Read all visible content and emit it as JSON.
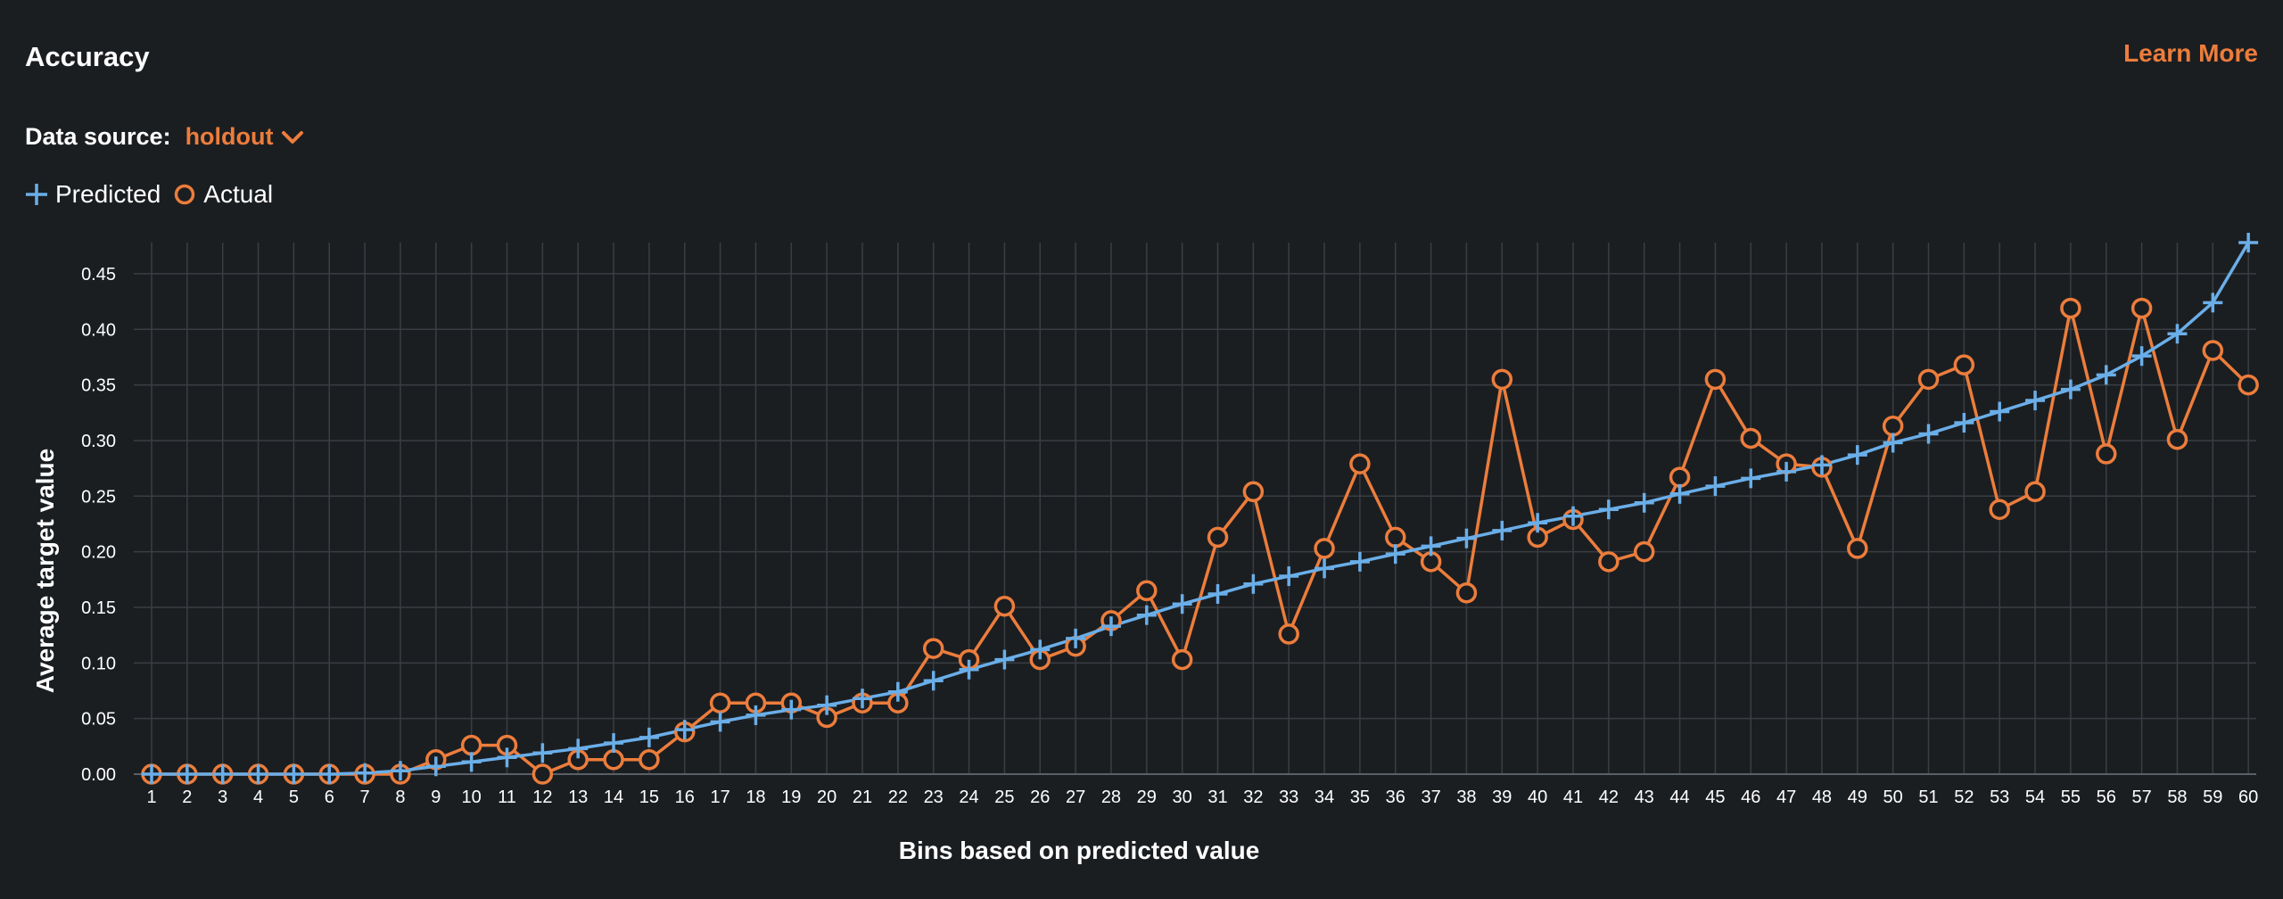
{
  "header": {
    "title": "Accuracy",
    "learn_more": "Learn More"
  },
  "data_source": {
    "label": "Data source:",
    "value": "holdout"
  },
  "colors": {
    "predicted": "#6aaee8",
    "actual": "#ec7d3c",
    "background": "#1b1e21",
    "grid": "#3a3e43"
  },
  "chart_data": {
    "type": "line",
    "xlabel": "Bins based on predicted value",
    "ylabel": "Average target value",
    "ylim": [
      0,
      0.478
    ],
    "yticks": [
      "0.00",
      "0.05",
      "0.10",
      "0.15",
      "0.20",
      "0.25",
      "0.30",
      "0.35",
      "0.40",
      "0.45"
    ],
    "grid": true,
    "legend_position": "top-left",
    "categories": [
      "1",
      "2",
      "3",
      "4",
      "5",
      "6",
      "7",
      "8",
      "9",
      "10",
      "11",
      "12",
      "13",
      "14",
      "15",
      "16",
      "17",
      "18",
      "19",
      "20",
      "21",
      "22",
      "23",
      "24",
      "25",
      "26",
      "27",
      "28",
      "29",
      "30",
      "31",
      "32",
      "33",
      "34",
      "35",
      "36",
      "37",
      "38",
      "39",
      "40",
      "41",
      "42",
      "43",
      "44",
      "45",
      "46",
      "47",
      "48",
      "49",
      "50",
      "51",
      "52",
      "53",
      "54",
      "55",
      "56",
      "57",
      "58",
      "59",
      "60"
    ],
    "series": [
      {
        "name": "Predicted",
        "marker": "plus",
        "values": [
          0,
          0,
          0,
          0,
          0,
          0,
          0.001,
          0.003,
          0.007,
          0.011,
          0.015,
          0.019,
          0.023,
          0.028,
          0.033,
          0.04,
          0.047,
          0.053,
          0.058,
          0.062,
          0.068,
          0.074,
          0.084,
          0.094,
          0.103,
          0.112,
          0.122,
          0.133,
          0.143,
          0.153,
          0.162,
          0.171,
          0.178,
          0.185,
          0.191,
          0.198,
          0.205,
          0.212,
          0.219,
          0.226,
          0.232,
          0.238,
          0.244,
          0.252,
          0.259,
          0.266,
          0.272,
          0.278,
          0.287,
          0.298,
          0.306,
          0.316,
          0.326,
          0.336,
          0.346,
          0.359,
          0.376,
          0.396,
          0.424,
          0.478
        ]
      },
      {
        "name": "Actual",
        "marker": "circle",
        "values": [
          0,
          0,
          0,
          0,
          0,
          0,
          0,
          0,
          0.013,
          0.026,
          0.026,
          0,
          0.013,
          0.013,
          0.013,
          0.038,
          0.064,
          0.064,
          0.064,
          0.051,
          0.064,
          0.064,
          0.113,
          0.103,
          0.151,
          0.103,
          0.115,
          0.138,
          0.165,
          0.103,
          0.213,
          0.254,
          0.126,
          0.203,
          0.279,
          0.213,
          0.191,
          0.163,
          0.355,
          0.213,
          0.229,
          0.191,
          0.2,
          0.267,
          0.355,
          0.302,
          0.279,
          0.276,
          0.203,
          0.313,
          0.355,
          0.368,
          0.238,
          0.254,
          0.419,
          0.288,
          0.419,
          0.301,
          0.381,
          0.35
        ]
      }
    ]
  }
}
